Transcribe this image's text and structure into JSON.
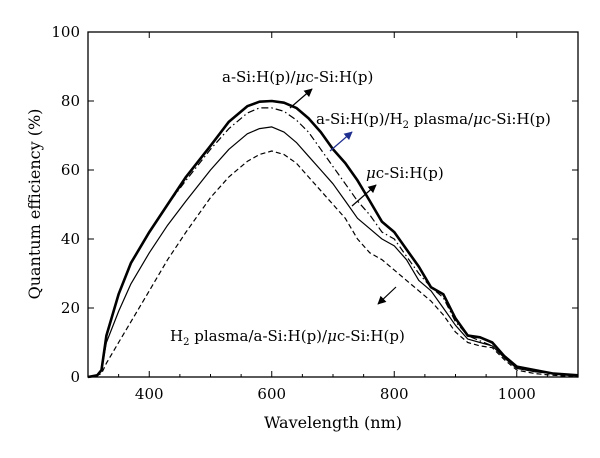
{
  "chart_data": {
    "type": "line",
    "xlabel": "Wavelength (nm)",
    "ylabel": "Quantum efficiency (%)",
    "xlim": [
      300,
      1100
    ],
    "ylim": [
      0,
      100
    ],
    "xticks": [
      400,
      600,
      800,
      1000
    ],
    "yticks": [
      0,
      20,
      40,
      60,
      80,
      100
    ],
    "grid": false,
    "series": [
      {
        "name": "a-Si:H(p)/μc-Si:H(p)",
        "style": "thick-solid",
        "x": [
          300,
          315,
          322,
          330,
          350,
          370,
          400,
          430,
          460,
          500,
          530,
          560,
          580,
          600,
          620,
          640,
          660,
          680,
          700,
          720,
          740,
          760,
          780,
          800,
          820,
          840,
          860,
          880,
          900,
          920,
          940,
          960,
          980,
          1000,
          1030,
          1060,
          1100
        ],
        "y": [
          0,
          0.5,
          2,
          12,
          24,
          33,
          42,
          50,
          58,
          67,
          74,
          78.5,
          79.8,
          80,
          79.5,
          78,
          75,
          71,
          66,
          62,
          57,
          51,
          45,
          42,
          37,
          32,
          26,
          24,
          17,
          12,
          11.5,
          10,
          6,
          3,
          2,
          1,
          0.5
        ]
      },
      {
        "name": "a-Si:H(p)/H2 plasma/μc-Si:H(p)",
        "style": "dash-dot",
        "x": [
          300,
          315,
          322,
          330,
          350,
          370,
          400,
          430,
          460,
          500,
          530,
          560,
          580,
          600,
          620,
          640,
          660,
          680,
          700,
          720,
          740,
          760,
          780,
          800,
          820,
          840,
          860,
          880,
          900,
          920,
          940,
          960,
          980,
          1000,
          1030,
          1060,
          1100
        ],
        "y": [
          0,
          0.5,
          2,
          12,
          24,
          33,
          42,
          50,
          57,
          66,
          72,
          76.5,
          78,
          78,
          77,
          74.5,
          71,
          66,
          61,
          56,
          51,
          47,
          42,
          40,
          35,
          30,
          26,
          23,
          16,
          12,
          10.5,
          9,
          6,
          3,
          2,
          1,
          0.5
        ]
      },
      {
        "name": "μc-Si:H(p)",
        "style": "solid",
        "x": [
          300,
          315,
          322,
          330,
          350,
          370,
          400,
          430,
          460,
          500,
          530,
          560,
          580,
          600,
          620,
          640,
          660,
          680,
          700,
          720,
          740,
          760,
          780,
          800,
          820,
          840,
          860,
          880,
          900,
          920,
          940,
          960,
          980,
          1000,
          1030,
          1060,
          1100
        ],
        "y": [
          0,
          0.5,
          2,
          10,
          19,
          27,
          36,
          44,
          51,
          60,
          66,
          70.5,
          72,
          72.5,
          71,
          68,
          64,
          60,
          56,
          51,
          46,
          43,
          40,
          38,
          34,
          28,
          25,
          20,
          15,
          11,
          10,
          9,
          5.5,
          2.5,
          1.5,
          1,
          0.5
        ]
      },
      {
        "name": "H2 plasma/a-Si:H(p)/μc-Si:H(p)",
        "style": "dashed",
        "x": [
          300,
          315,
          322,
          330,
          350,
          370,
          400,
          430,
          460,
          500,
          530,
          560,
          580,
          600,
          620,
          640,
          660,
          680,
          700,
          720,
          740,
          760,
          780,
          800,
          820,
          840,
          860,
          880,
          900,
          920,
          940,
          960,
          980,
          1000,
          1030,
          1060,
          1100
        ],
        "y": [
          0,
          0.5,
          1,
          4,
          10,
          16,
          25,
          34,
          42,
          52,
          58,
          62.5,
          64.5,
          65.5,
          64.5,
          62,
          58,
          54,
          50,
          46,
          40,
          36,
          34,
          31,
          28,
          25,
          22,
          18,
          13,
          10,
          9,
          8.5,
          5,
          2,
          1,
          0.5,
          0
        ]
      }
    ],
    "annotations": [
      {
        "label": "a-Si:H(p)/μc-Si:H(p)",
        "arrow_color": "#000000"
      },
      {
        "label": "a-Si:H(p)/H2 plasma/μc-Si:H(p)",
        "arrow_color": "#1f2f8f"
      },
      {
        "label": "μc-Si:H(p)",
        "arrow_color": "#000000"
      },
      {
        "label": "H2 plasma/a-Si:H(p)/μc-Si:H(p)",
        "arrow_color": "#000000"
      }
    ]
  }
}
